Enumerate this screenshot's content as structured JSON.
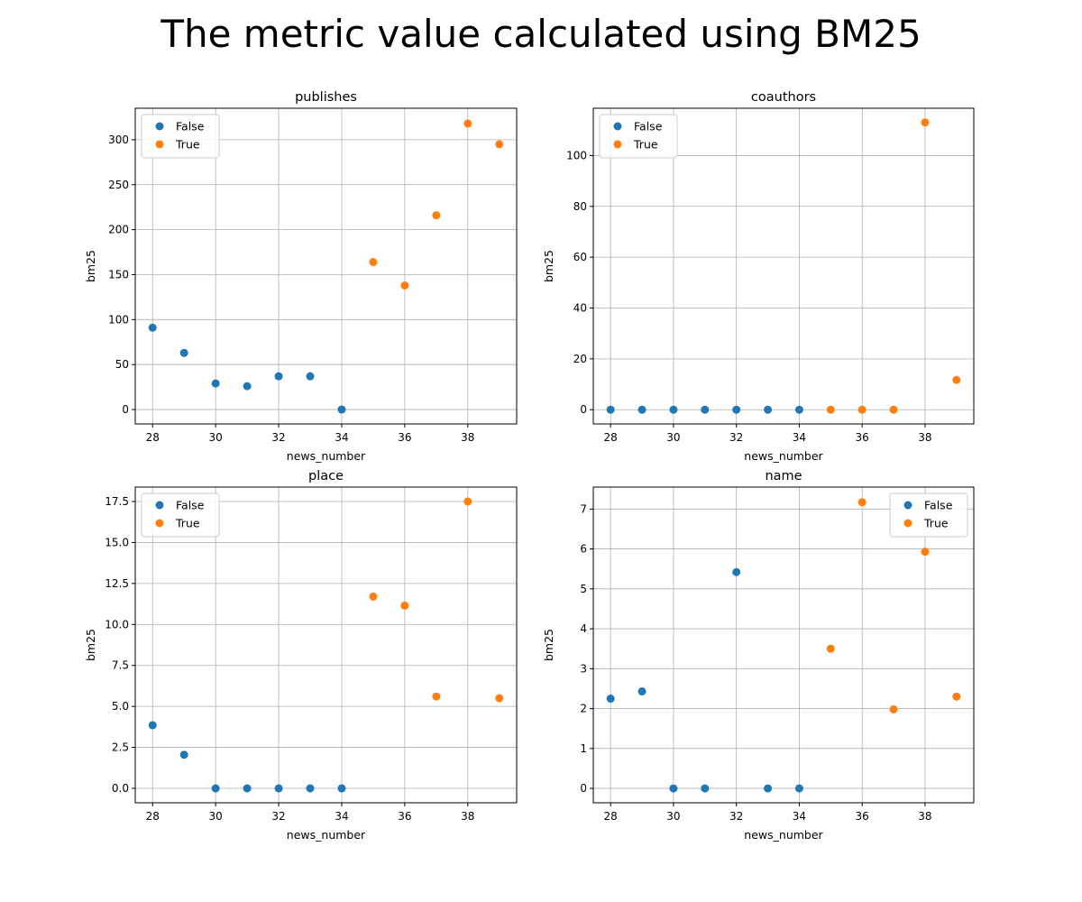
{
  "figure": {
    "title": "The metric value calculated using BM25"
  },
  "colors": {
    "False": "#1f77b4",
    "True": "#ff7f0e",
    "grid": "#b0b0b0",
    "legend_border": "#cccccc"
  },
  "chart_data": [
    {
      "type": "scatter",
      "title": "publishes",
      "xlabel": "news_number",
      "ylabel": "bm25",
      "xlim": [
        27.45,
        39.55
      ],
      "ylim": [
        -16,
        335
      ],
      "xticks": [
        28,
        30,
        32,
        34,
        36,
        38
      ],
      "yticks": [
        0,
        50,
        100,
        150,
        200,
        250,
        300
      ],
      "grid": true,
      "legend": "upper left",
      "series": [
        {
          "name": "False",
          "x": [
            28,
            29,
            30,
            31,
            32,
            33,
            34
          ],
          "y": [
            91,
            63,
            29,
            26,
            37,
            37,
            0
          ]
        },
        {
          "name": "True",
          "x": [
            35,
            36,
            37,
            38,
            39
          ],
          "y": [
            164,
            138,
            216,
            318,
            295
          ]
        }
      ]
    },
    {
      "type": "scatter",
      "title": "coauthors",
      "xlabel": "news_number",
      "ylabel": "bm25",
      "xlim": [
        27.45,
        39.55
      ],
      "ylim": [
        -5.6,
        118.6
      ],
      "xticks": [
        28,
        30,
        32,
        34,
        36,
        38
      ],
      "yticks": [
        0,
        20,
        40,
        60,
        80,
        100
      ],
      "grid": true,
      "legend": "upper left",
      "series": [
        {
          "name": "False",
          "x": [
            28,
            29,
            30,
            31,
            32,
            33,
            34
          ],
          "y": [
            0,
            0,
            0,
            0,
            0,
            0,
            0
          ]
        },
        {
          "name": "True",
          "x": [
            35,
            36,
            37,
            38,
            39
          ],
          "y": [
            0,
            0,
            0,
            113,
            11.7
          ]
        }
      ]
    },
    {
      "type": "scatter",
      "title": "place",
      "xlabel": "news_number",
      "ylabel": "bm25",
      "xlim": [
        27.45,
        39.55
      ],
      "ylim": [
        -0.88,
        18.38
      ],
      "xticks": [
        28,
        30,
        32,
        34,
        36,
        38
      ],
      "yticks": [
        0.0,
        2.5,
        5.0,
        7.5,
        10.0,
        12.5,
        15.0,
        17.5
      ],
      "ytick_labels": [
        "0.0",
        "2.5",
        "5.0",
        "7.5",
        "10.0",
        "12.5",
        "15.0",
        "17.5"
      ],
      "grid": true,
      "legend": "upper left",
      "series": [
        {
          "name": "False",
          "x": [
            28,
            29,
            30,
            31,
            32,
            33,
            34
          ],
          "y": [
            3.85,
            2.05,
            0,
            0,
            0,
            0,
            0
          ]
        },
        {
          "name": "True",
          "x": [
            35,
            36,
            37,
            38,
            39
          ],
          "y": [
            11.7,
            11.15,
            5.6,
            17.5,
            5.5
          ]
        }
      ]
    },
    {
      "type": "scatter",
      "title": "name",
      "xlabel": "news_number",
      "ylabel": "bm25",
      "xlim": [
        27.45,
        39.55
      ],
      "ylim": [
        -0.36,
        7.55
      ],
      "xticks": [
        28,
        30,
        32,
        34,
        36,
        38
      ],
      "yticks": [
        0,
        1,
        2,
        3,
        4,
        5,
        6,
        7
      ],
      "grid": true,
      "legend": "upper right",
      "series": [
        {
          "name": "False",
          "x": [
            28,
            29,
            30,
            31,
            32,
            33,
            34
          ],
          "y": [
            2.25,
            2.43,
            0,
            0,
            5.42,
            0,
            0
          ]
        },
        {
          "name": "True",
          "x": [
            35,
            36,
            37,
            38,
            39
          ],
          "y": [
            3.5,
            7.17,
            1.98,
            5.93,
            2.3
          ]
        }
      ]
    }
  ]
}
